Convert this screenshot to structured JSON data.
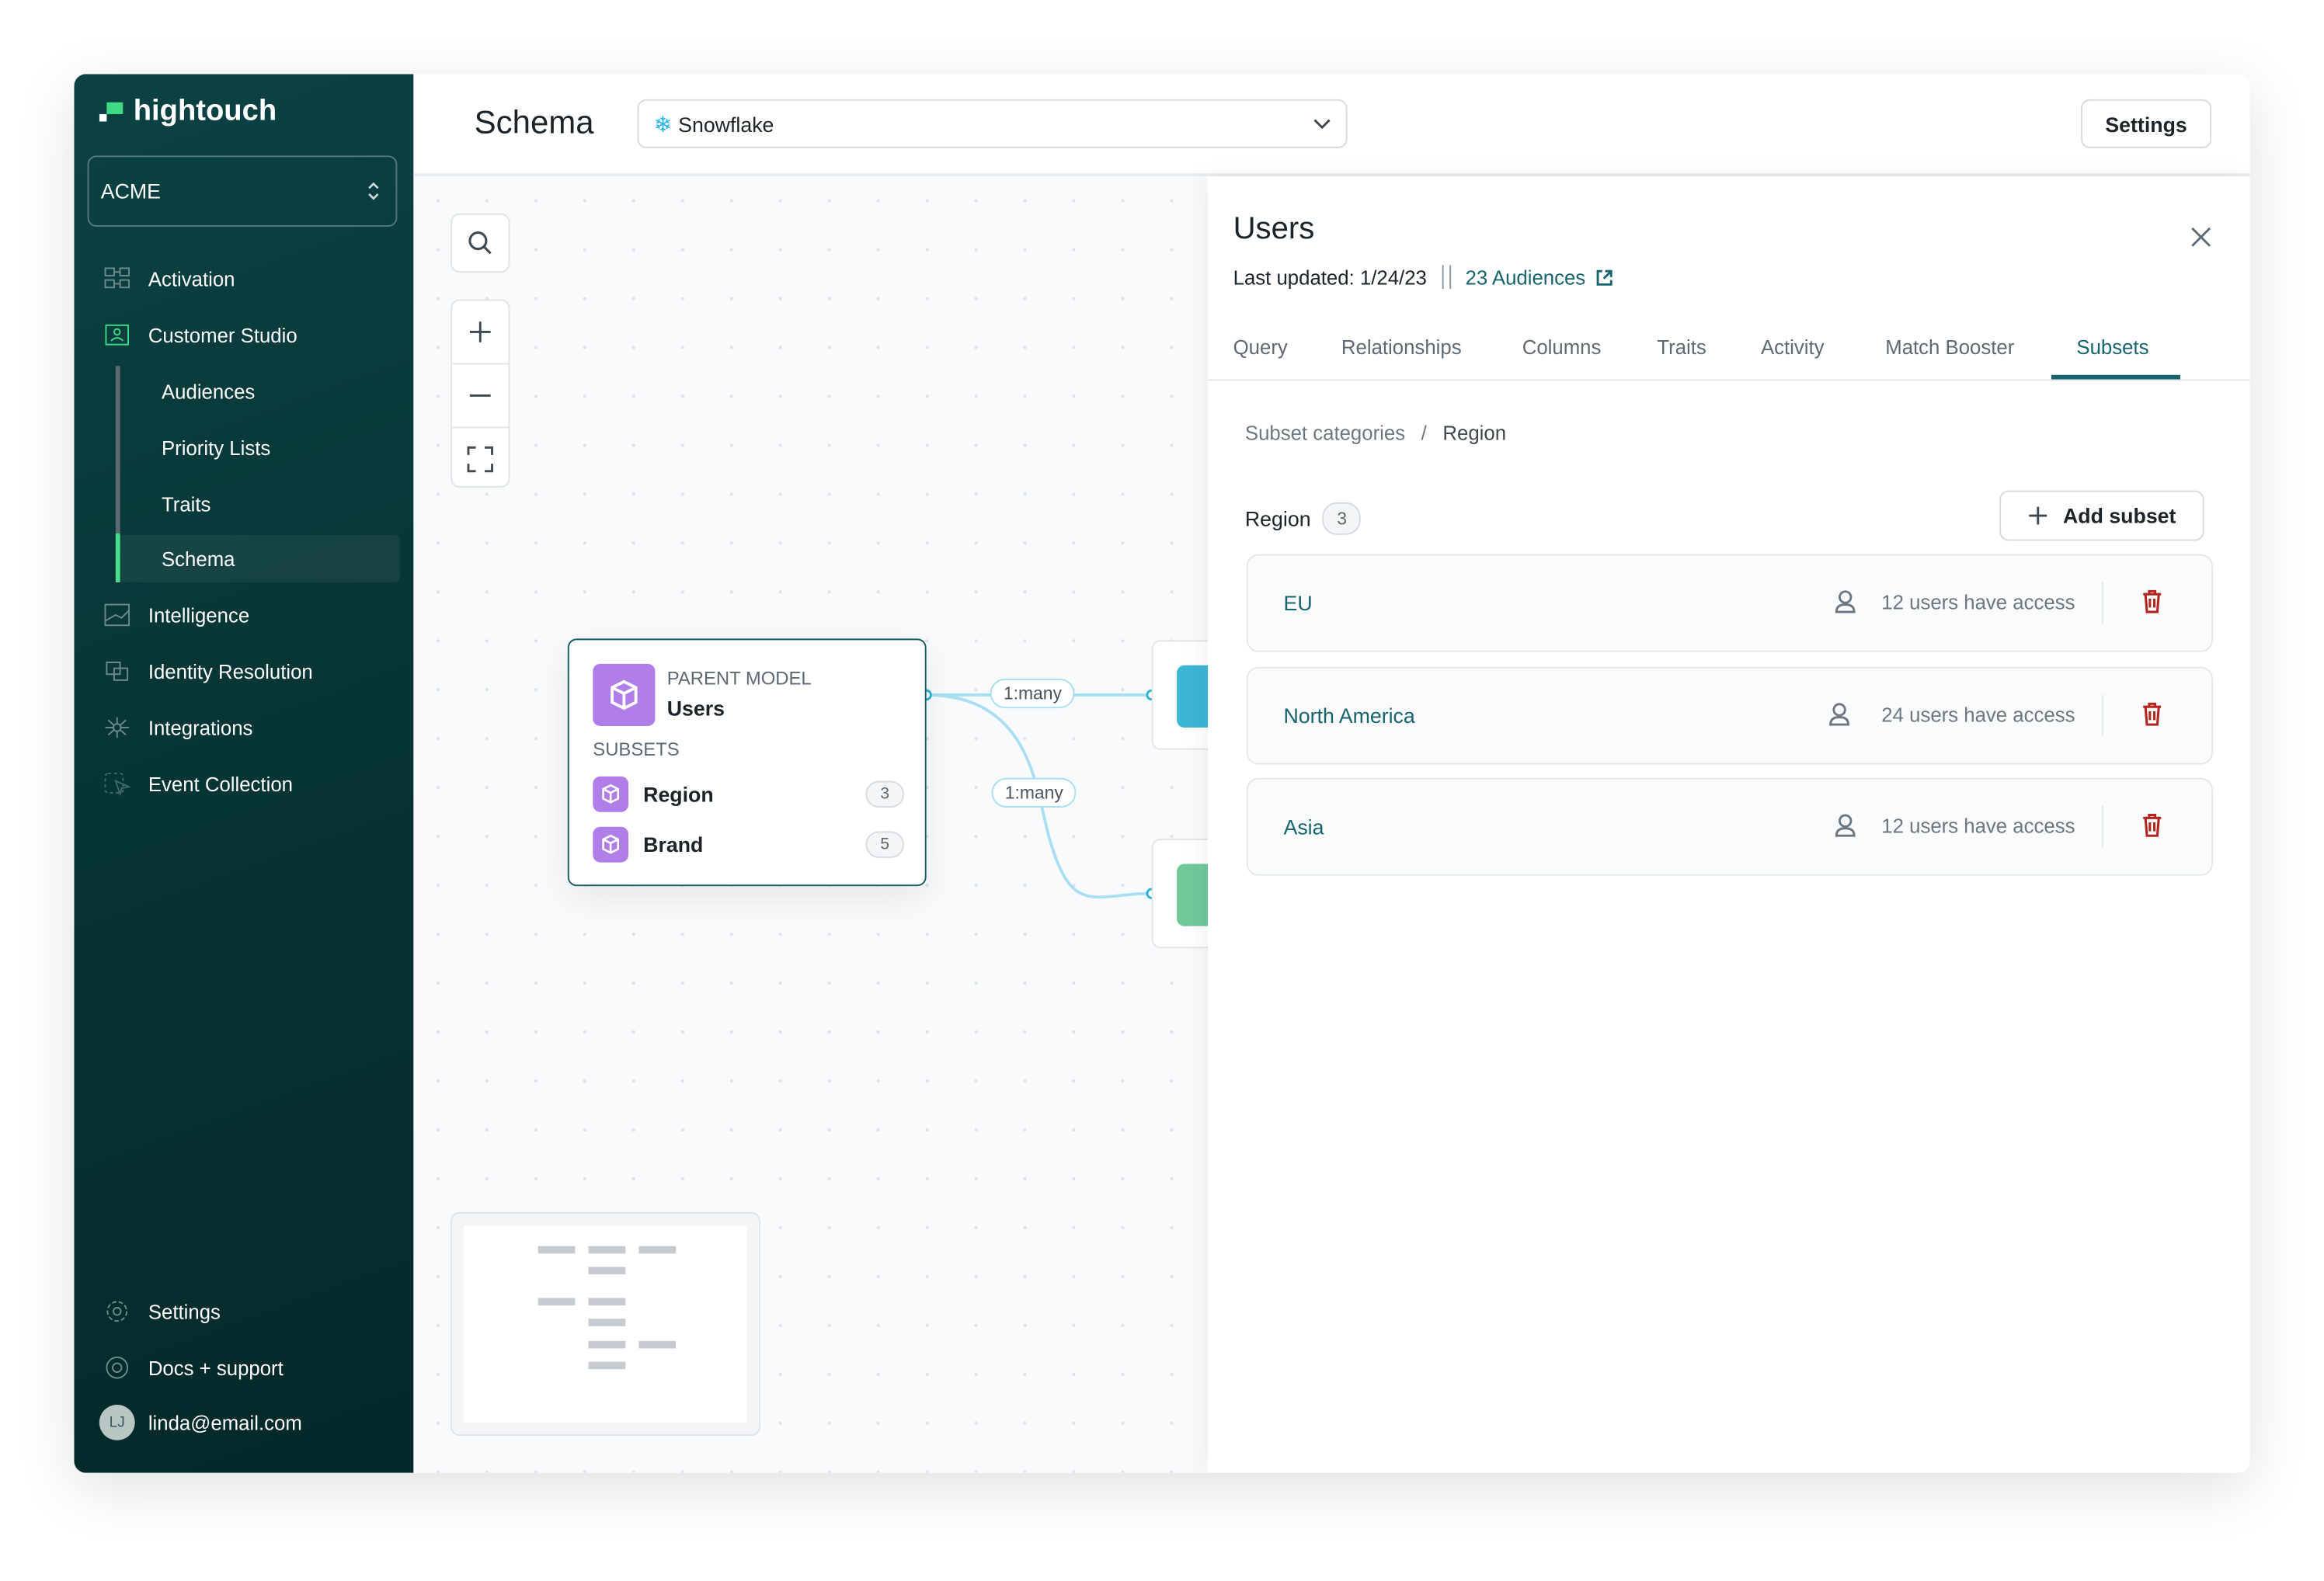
{
  "brand": {
    "name": "hightouch",
    "accent": "#3ddc84"
  },
  "sidebar": {
    "workspace": "ACME",
    "items": [
      {
        "label": "Activation",
        "icon": "activation-icon"
      },
      {
        "label": "Customer Studio",
        "icon": "customer-studio-icon"
      },
      {
        "label": "Audiences"
      },
      {
        "label": "Priority Lists"
      },
      {
        "label": "Traits"
      },
      {
        "label": "Schema",
        "active": true
      },
      {
        "label": "Intelligence",
        "icon": "intelligence-icon"
      },
      {
        "label": "Identity Resolution",
        "icon": "identity-resolution-icon"
      },
      {
        "label": "Integrations",
        "icon": "integrations-icon"
      },
      {
        "label": "Event Collection",
        "icon": "event-collection-icon"
      }
    ],
    "footer": {
      "settings": "Settings",
      "docs": "Docs + support",
      "user_initials": "LJ",
      "user_email": "linda@email.com"
    }
  },
  "header": {
    "title": "Schema",
    "source": "Snowflake",
    "settings_label": "Settings"
  },
  "canvas": {
    "parent_model": {
      "kicker": "PARENT MODEL",
      "name": "Users",
      "subsets_label": "SUBSETS",
      "subsets": [
        {
          "name": "Region",
          "count": "3"
        },
        {
          "name": "Brand",
          "count": "5"
        }
      ]
    },
    "edges": [
      {
        "label": "1:many"
      },
      {
        "label": "1:many"
      }
    ]
  },
  "panel": {
    "title": "Users",
    "last_updated": "Last updated: 1/24/23",
    "audiences_link": "23 Audiences",
    "tabs": [
      "Query",
      "Relationships",
      "Columns",
      "Traits",
      "Activity",
      "Match Booster",
      "Subsets"
    ],
    "active_tab": "Subsets",
    "breadcrumb": {
      "parent": "Subset categories",
      "sep": "/",
      "current": "Region"
    },
    "category": {
      "name": "Region",
      "count": "3"
    },
    "add_label": "Add subset",
    "subsets": [
      {
        "name": "EU",
        "access": "12 users have access"
      },
      {
        "name": "North America",
        "access": "24 users have access"
      },
      {
        "name": "Asia",
        "access": "12 users have access"
      }
    ]
  },
  "colors": {
    "sidebar": "#073434",
    "teal": "#17646d",
    "danger": "#b3261e",
    "subset_purple": "#b07ee8"
  }
}
